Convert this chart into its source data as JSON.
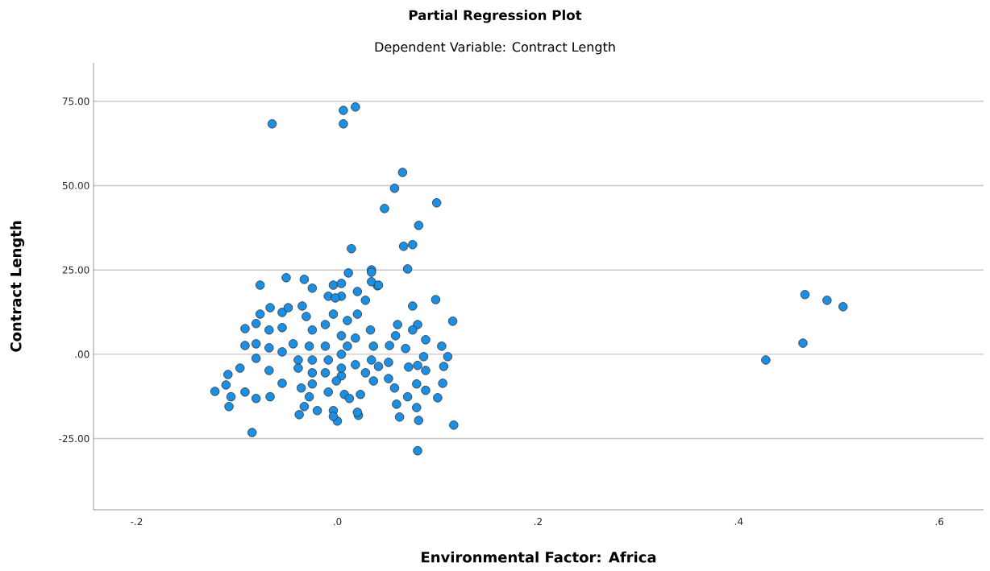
{
  "chart_data": {
    "type": "scatter",
    "title": "Partial Regression Plot",
    "subtitle": "Dependent Variable: Contract Length",
    "xlabel": "Environmental Factor: Africa",
    "ylabel": "Contract Length",
    "xlim": [
      -0.243,
      0.644
    ],
    "ylim": [
      -46.1,
      86.4
    ],
    "xticks": [
      {
        "value": -0.2,
        "label": "-.2"
      },
      {
        "value": 0,
        "label": ".0"
      },
      {
        "value": 0.2,
        "label": ".2"
      },
      {
        "value": 0.4,
        "label": ".4"
      },
      {
        "value": 0.6,
        "label": ".6"
      }
    ],
    "yticks": [
      {
        "value": -25,
        "label": "-25.00"
      },
      {
        "value": 0,
        "label": ".00"
      },
      {
        "value": 25,
        "label": "25.00"
      },
      {
        "value": 50,
        "label": "50.00"
      },
      {
        "value": 75,
        "label": "75.00"
      }
    ],
    "grid": "y",
    "marker": "circle",
    "series": [
      {
        "color": "#1a8fe3",
        "x": [
          -0.065,
          0.006,
          0.018,
          0.006,
          0.065,
          0.057,
          0.047,
          0.099,
          0.081,
          0.066,
          0.075,
          0.014,
          0.07,
          0.011,
          -0.077,
          -0.051,
          -0.033,
          0.034,
          0.04,
          0.075,
          0.098,
          0.115,
          0.427,
          0.464,
          0.466,
          0.488,
          0.504,
          -0.085,
          0.08,
          0.116,
          -0.122,
          -0.108,
          -0.038,
          -0.02,
          0.0,
          0.081,
          0.062,
          0.021,
          0.105,
          0.1,
          -0.025,
          -0.004,
          0.004,
          -0.067,
          -0.077,
          -0.092,
          -0.092,
          -0.081,
          -0.081,
          -0.081,
          -0.097,
          -0.109,
          -0.111,
          -0.106,
          -0.092,
          -0.081,
          -0.067,
          -0.055,
          -0.068,
          -0.068,
          -0.068,
          -0.055,
          -0.049,
          -0.035,
          -0.055,
          -0.055,
          -0.044,
          -0.039,
          -0.039,
          -0.036,
          -0.033,
          -0.031,
          -0.025,
          -0.028,
          -0.025,
          -0.025,
          -0.025,
          -0.028,
          -0.012,
          -0.012,
          -0.009,
          -0.012,
          -0.009,
          -0.004,
          -0.004,
          0.004,
          -0.009,
          0.004,
          0.004,
          0.004,
          0.007,
          0.034,
          0.034,
          0.041,
          0.02,
          0.028,
          0.06,
          0.08,
          0.075,
          0.088,
          0.104,
          0.11,
          0.033,
          0.058,
          0.068,
          0.086,
          0.052,
          0.051,
          0.071,
          0.08,
          0.088,
          0.106,
          0.051,
          0.057,
          0.079,
          0.088,
          0.059,
          0.07,
          0.079,
          0.02,
          0.034,
          0.036,
          0.023,
          0.012,
          -0.001,
          -0.004,
          0.004,
          0.018,
          0.01,
          0.018,
          0.028,
          0.036,
          0.041,
          -0.002,
          0.02,
          0.01
        ],
        "values": [
          68.3,
          72.3,
          73.3,
          68.3,
          53.9,
          49.2,
          43.2,
          44.9,
          38.2,
          32.0,
          32.5,
          31.3,
          25.3,
          24.1,
          20.5,
          22.7,
          22.2,
          25.0,
          20.3,
          14.3,
          16.2,
          9.8,
          -1.7,
          3.3,
          17.7,
          16.0,
          14.1,
          -23.2,
          -28.6,
          -21.0,
          -11.0,
          -15.5,
          -17.9,
          -16.7,
          -19.8,
          -19.6,
          -18.6,
          -18.1,
          -8.6,
          -12.9,
          19.6,
          20.5,
          21.0,
          13.8,
          11.9,
          7.6,
          2.6,
          9.1,
          3.1,
          -1.2,
          -4.1,
          -6.0,
          -9.1,
          -12.6,
          -11.2,
          -13.1,
          -12.6,
          -8.6,
          -4.8,
          1.9,
          7.2,
          12.4,
          13.8,
          14.3,
          7.9,
          0.7,
          3.1,
          -1.7,
          -4.1,
          -10.0,
          -15.5,
          11.2,
          7.2,
          2.4,
          -1.7,
          -5.5,
          -8.8,
          -12.6,
          8.8,
          2.4,
          -1.7,
          -5.5,
          -11.2,
          -16.7,
          11.9,
          17.2,
          17.2,
          5.5,
          0.0,
          -6.4,
          -11.9,
          24.3,
          21.5,
          20.5,
          18.6,
          16.0,
          8.8,
          8.8,
          7.2,
          4.3,
          2.4,
          -0.7,
          7.2,
          5.5,
          1.7,
          -0.7,
          2.6,
          -2.4,
          -3.8,
          -3.3,
          -4.8,
          -3.6,
          -7.2,
          -10.0,
          -8.8,
          -10.7,
          -14.8,
          -12.6,
          -15.8,
          -17.2,
          -1.7,
          -7.9,
          -11.9,
          -13.1,
          -7.9,
          -18.4,
          -4.1,
          4.8,
          2.4,
          -3.1,
          -5.5,
          2.4,
          -3.6,
          16.7,
          11.9,
          10.0
        ]
      }
    ]
  }
}
